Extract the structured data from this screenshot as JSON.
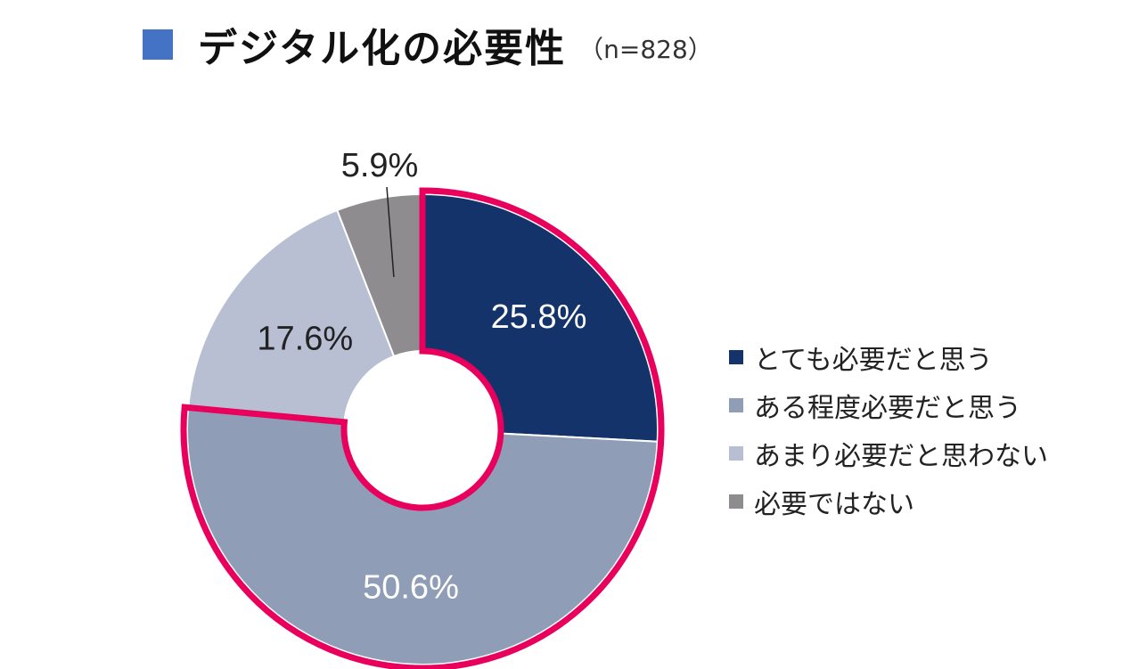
{
  "title": "デジタル化の必要性",
  "subtitle": "（n=828）",
  "chart_data": {
    "type": "pie",
    "variant": "donut",
    "title": "デジタル化の必要性",
    "n": 828,
    "unit": "%",
    "slices": [
      {
        "name": "とても必要だと思う",
        "value": 25.8,
        "label": "25.8%",
        "color": "#14336b",
        "label_color": "#ffffff",
        "highlighted": true
      },
      {
        "name": "ある程度必要だと思う",
        "value": 50.6,
        "label": "50.6%",
        "color": "#8f9db6",
        "label_color": "#ffffff",
        "highlighted": true
      },
      {
        "name": "あまり必要だと思わない",
        "value": 17.6,
        "label": "17.6%",
        "color": "#b8bfd3",
        "label_color": "#222222",
        "highlighted": false
      },
      {
        "name": "必要ではない",
        "value": 5.9,
        "label": "5.9%",
        "color": "#8e8c8f",
        "label_color": "#222222",
        "highlighted": false
      }
    ],
    "highlight_color": "#e8005c",
    "legend_position": "right"
  }
}
